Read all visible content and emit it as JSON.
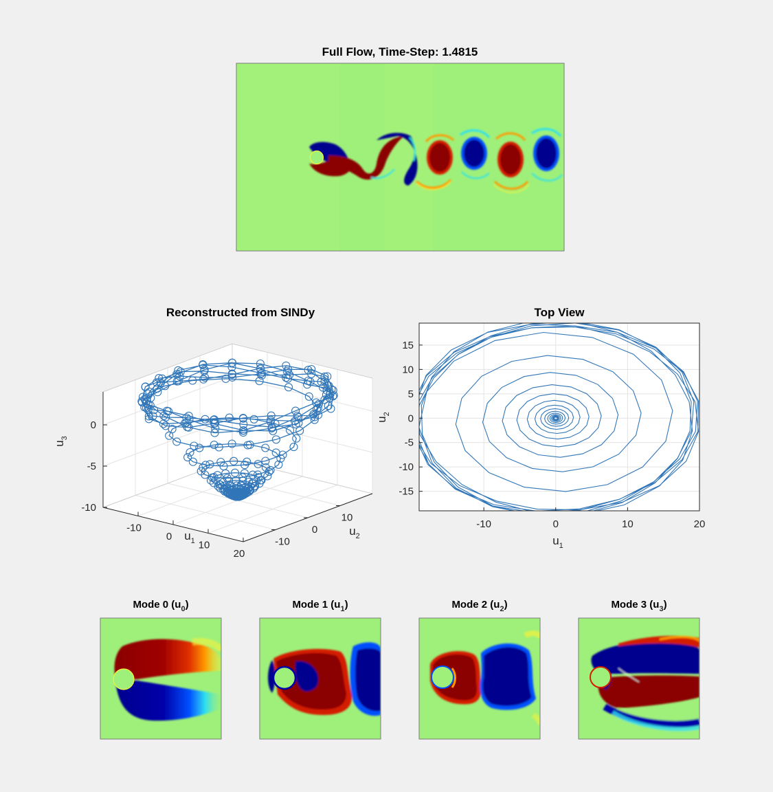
{
  "window": {
    "background": "#f0f0f0"
  },
  "colors": {
    "jet_background": "#9ef07a",
    "jet_dark_red": "#8b0000",
    "jet_red": "#d41e00",
    "jet_orange": "#ff9a00",
    "jet_yellow": "#f5f23a",
    "jet_cyan": "#2fe0f0",
    "jet_blue": "#0050ff",
    "jet_dark_blue": "#00008f",
    "line_blue": "#3176b8",
    "grid": "#e3e3e3",
    "axis": "#262626"
  },
  "full_flow": {
    "title_prefix": "Full Flow, Time-Step: ",
    "time_step": "1.4815",
    "colormap": "jet"
  },
  "modes": [
    {
      "name": "Mode 0 (u",
      "sub": "0",
      "suffix": ")"
    },
    {
      "name": "Mode 1 (u",
      "sub": "1",
      "suffix": ")"
    },
    {
      "name": "Mode 2 (u",
      "sub": "2",
      "suffix": ")"
    },
    {
      "name": "Mode 3 (u",
      "sub": "3",
      "suffix": ")"
    }
  ],
  "chart_data": [
    {
      "id": "reconstructed",
      "type": "line3d",
      "title": "Reconstructed from SINDy",
      "xlabel": "u",
      "xlabel_sub": "1",
      "ylabel": "u",
      "ylabel_sub": "2",
      "zlabel": "u",
      "zlabel_sub": "3",
      "xlim": [
        -20,
        20
      ],
      "ylim": [
        -20,
        20
      ],
      "zlim": [
        -10,
        4
      ],
      "xticks": [
        -10,
        0,
        10,
        20
      ],
      "yticks": [
        -10,
        0,
        10
      ],
      "zticks": [
        -10,
        -5,
        0
      ],
      "marker": "circle",
      "trajectory": "spiral growing from radius 0.2 at u3 = -9.5 to a limit cycle of radius ~19.5 at u3 = 2.5",
      "spiral": {
        "r_start": 0.2,
        "r_end": 19.5,
        "growth_per_rad": 0.05,
        "limit_cycle_revolutions": 6,
        "points_per_revolution": 20,
        "z_base": -9.5,
        "z_top": 2.5,
        "z_wobble": 0.9
      }
    },
    {
      "id": "top_view",
      "type": "line",
      "title": "Top View",
      "xlabel": "u",
      "xlabel_sub": "1",
      "ylabel": "u",
      "ylabel_sub": "2",
      "xlim": [
        -19,
        20
      ],
      "ylim": [
        -19,
        19.5
      ],
      "xticks": [
        -10,
        0,
        10,
        20
      ],
      "yticks": [
        -15,
        -10,
        -5,
        0,
        5,
        10,
        15
      ],
      "grid": true,
      "trajectory": "same spiral projected onto the u1-u2 plane",
      "spiral": {
        "r_start": 0.2,
        "r_end": 19.5,
        "growth_per_rad": 0.05,
        "limit_cycle_revolutions": 6,
        "points_per_revolution": 20
      }
    }
  ]
}
